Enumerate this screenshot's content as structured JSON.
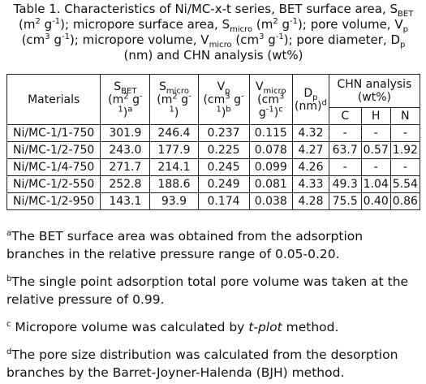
{
  "caption": [
    "Table 1. Characteristics of Ni/MC-x-t series, BET surface area, S",
    "BET",
    " (m",
    "2",
    " g",
    "-1",
    "); micropore surface area, S",
    "micro",
    " (m",
    "2",
    " g",
    "-1",
    "); pore volume, V",
    "p",
    " (cm",
    "3",
    " g",
    "-1",
    "); micropore volume, V",
    "micro",
    " (cm",
    "3",
    " g",
    "-1",
    "); pore diameter, D",
    "p",
    " (nm) and CHN analysis (wt%)"
  ],
  "table": {
    "headers": {
      "materials": "Materials",
      "s_bet": [
        "S",
        "BET",
        "(m",
        "2",
        " g",
        "-1",
        ")",
        "a"
      ],
      "s_micro": [
        "S",
        "micro",
        "(m",
        "2",
        " g",
        "-1",
        ")"
      ],
      "vp": [
        "V",
        "p",
        "(cm",
        "3",
        " g",
        "-1",
        ")",
        "b"
      ],
      "vmicro": [
        "V",
        "micro",
        "(cm",
        "3",
        " g",
        "-1",
        ")",
        "c"
      ],
      "dp": [
        "D",
        "p",
        "(nm)",
        "d"
      ],
      "chn": "CHN analysis (wt%)",
      "chn_cols": [
        "C",
        "H",
        "N"
      ]
    },
    "rows": [
      [
        "Ni/MC-1/1-750",
        "301.9",
        "246.4",
        "0.237",
        "0.115",
        "4.32",
        "-",
        "-",
        "-"
      ],
      [
        "Ni/MC-1/2-750",
        "243.0",
        "177.9",
        "0.225",
        "0.078",
        "4.27",
        "63.7",
        "0.57",
        "1.92"
      ],
      [
        "Ni/MC-1/4-750",
        "271.7",
        "214.1",
        "0.245",
        "0.099",
        "4.26",
        "-",
        "-",
        "-"
      ],
      [
        "Ni/MC-1/2-550",
        "252.8",
        "188.6",
        "0.249",
        "0.081",
        "4.33",
        "49.3",
        "1.04",
        "5.54"
      ],
      [
        "Ni/MC-1/2-950",
        "143.1",
        "93.9",
        "0.174",
        "0.038",
        "4.28",
        "75.5",
        "0.40",
        "0.86"
      ]
    ]
  },
  "footnotes": [
    [
      "a",
      "The BET surface area was obtained from the adsorption branches in the relative pressure range of 0.05-0.20."
    ],
    [
      "b",
      "The single point adsorption total pore volume was taken at the relative pressure of 0.99."
    ],
    [
      "c",
      " Micropore volume was calculated by ",
      "t-plot",
      " method."
    ],
    [
      "d",
      "The pore size distribution was calculated from the desorption branches by the Barret-Joyner-Halenda (BJH) method."
    ]
  ]
}
